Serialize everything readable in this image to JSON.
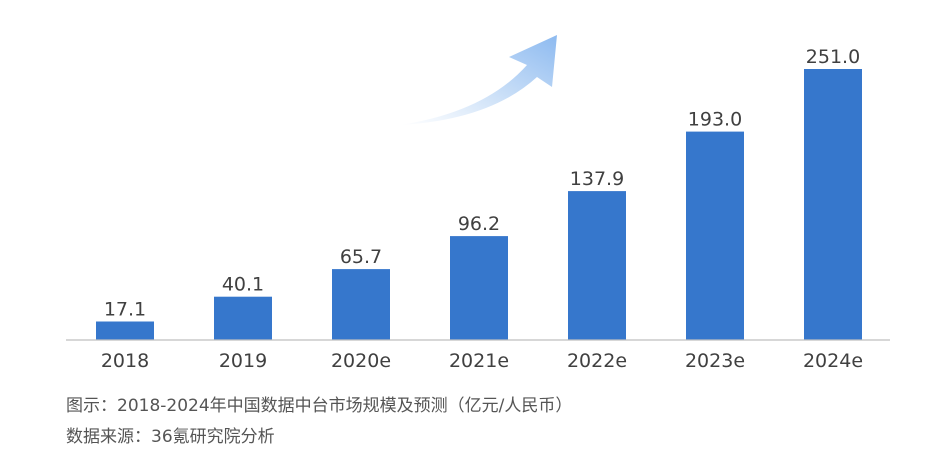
{
  "chart_data": {
    "type": "bar",
    "categories": [
      "2018",
      "2019",
      "2020e",
      "2021e",
      "2022e",
      "2023e",
      "2024e"
    ],
    "values": [
      17.1,
      40.1,
      65.7,
      96.2,
      137.9,
      193.0,
      251.0
    ],
    "value_labels": [
      "17.1",
      "40.1",
      "65.7",
      "96.2",
      "137.9",
      "193.0",
      "251.0"
    ],
    "title": "",
    "xlabel": "",
    "ylabel": "",
    "ylim": [
      0,
      251
    ],
    "grid": false,
    "legend": "none",
    "bar_color": "#3677CC",
    "arrow_color": "#9CC3F0",
    "text_color": "#404040"
  },
  "caption": {
    "title": "图示：2018-2024年中国数据中台市场规模及预测（亿元/人民币）",
    "source": "数据来源：36氪研究院分析"
  }
}
